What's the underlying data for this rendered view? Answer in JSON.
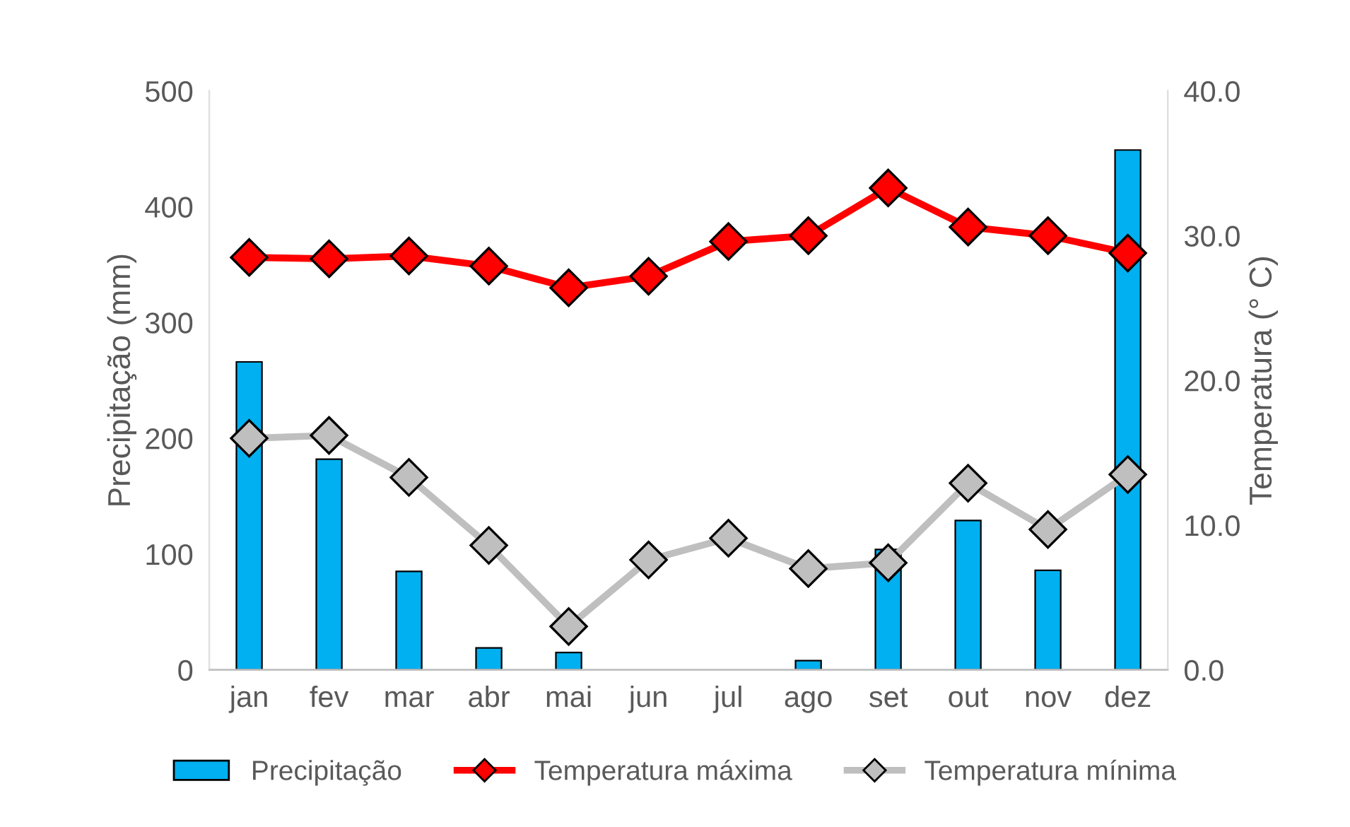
{
  "chart_data": {
    "type": "bar",
    "categories": [
      "jan",
      "fev",
      "mar",
      "abr",
      "mai",
      "jun",
      "jul",
      "ago",
      "set",
      "out",
      "nov",
      "dez"
    ],
    "ylabel": "Precipitação (mm)",
    "y2label": "Temperatura (° C)",
    "ylim": [
      0,
      500
    ],
    "yticks": [
      0,
      100,
      200,
      300,
      400,
      500
    ],
    "y2lim": [
      0,
      40
    ],
    "y2ticks": [
      {
        "value": 0,
        "label": "0.0"
      },
      {
        "value": 10,
        "label": "10.0"
      },
      {
        "value": 20,
        "label": "20.0"
      },
      {
        "value": 30,
        "label": "30.0"
      },
      {
        "value": 40,
        "label": "40.0"
      }
    ],
    "legend": "bottom",
    "grid": false,
    "marker": "diamond",
    "series": [
      {
        "name": "Precipitação",
        "color": "#00b0f0",
        "values": [
          266,
          182,
          85,
          19,
          15,
          0,
          0,
          8,
          104,
          129,
          86,
          449
        ]
      },
      {
        "name": "Temperatura máxima",
        "type": "line",
        "axis": "y2",
        "color": "#ff0000",
        "values": [
          28.5,
          28.4,
          28.6,
          27.9,
          26.4,
          27.2,
          29.6,
          30.0,
          33.3,
          30.6,
          30.0,
          28.8
        ]
      },
      {
        "name": "Temperatura mínima",
        "type": "line",
        "axis": "y2",
        "color": "#bfbfbf",
        "values": [
          16.0,
          16.2,
          13.3,
          8.6,
          3.0,
          7.6,
          9.1,
          7.0,
          7.4,
          12.9,
          9.7,
          13.5
        ]
      }
    ]
  }
}
